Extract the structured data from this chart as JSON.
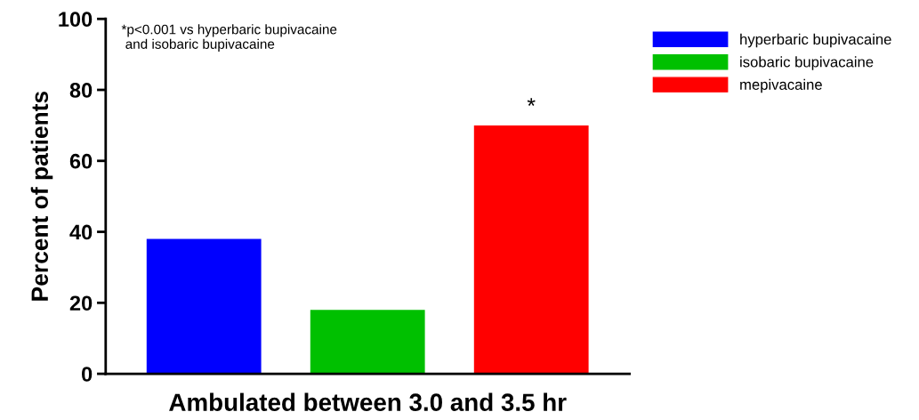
{
  "chart_data": {
    "type": "bar",
    "categories": [
      null
    ],
    "xlabel": "Ambulated between 3.0 and 3.5 hr",
    "ylabel": "Percent of patients",
    "series": [
      {
        "name": "hyperbaric bupivacaine",
        "color": "#0000ff",
        "values": [
          38
        ]
      },
      {
        "name": "isobaric bupivacaine",
        "color": "#00c000",
        "values": [
          18
        ]
      },
      {
        "name": "mepivacaine",
        "color": "#ff0000",
        "values": [
          70
        ]
      }
    ],
    "ylim": [
      0,
      100
    ],
    "yticks": [
      0,
      20,
      40,
      60,
      80,
      100
    ],
    "annotations": [
      "*p<0.001 vs hyperbaric bupivacaine\n and isobaric bupivacaine",
      {
        "text": "*",
        "y": 70
      }
    ],
    "legend": "top right",
    "grid": false
  }
}
